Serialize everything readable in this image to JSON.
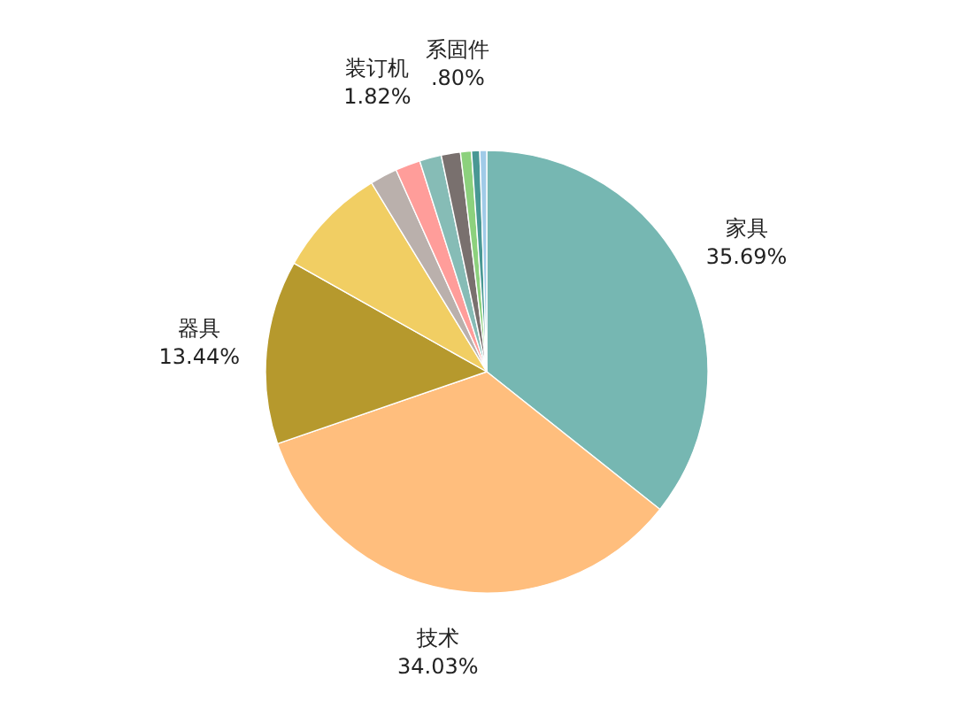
{
  "chart_data": {
    "type": "pie",
    "categories": [
      "家具",
      "技术",
      "器具",
      null,
      null,
      "装订机",
      null,
      null,
      "系固件",
      null,
      null
    ],
    "values": [
      35.69,
      34.03,
      13.44,
      8.12,
      2.0,
      1.82,
      1.6,
      1.4,
      0.8,
      0.6,
      0.5
    ],
    "value_labels": [
      "35.69%",
      "34.03%",
      "13.44%",
      null,
      null,
      "1.82%",
      null,
      null,
      ".80%",
      null,
      null
    ],
    "colors": [
      "#76b7b2",
      "#ffbe7d",
      "#b6992d",
      "#f1ce63",
      "#bab0ac",
      "#ff9d9a",
      "#86bcb6",
      "#79706e",
      "#8cd17d",
      "#499894",
      "#a0cbe8"
    ]
  }
}
